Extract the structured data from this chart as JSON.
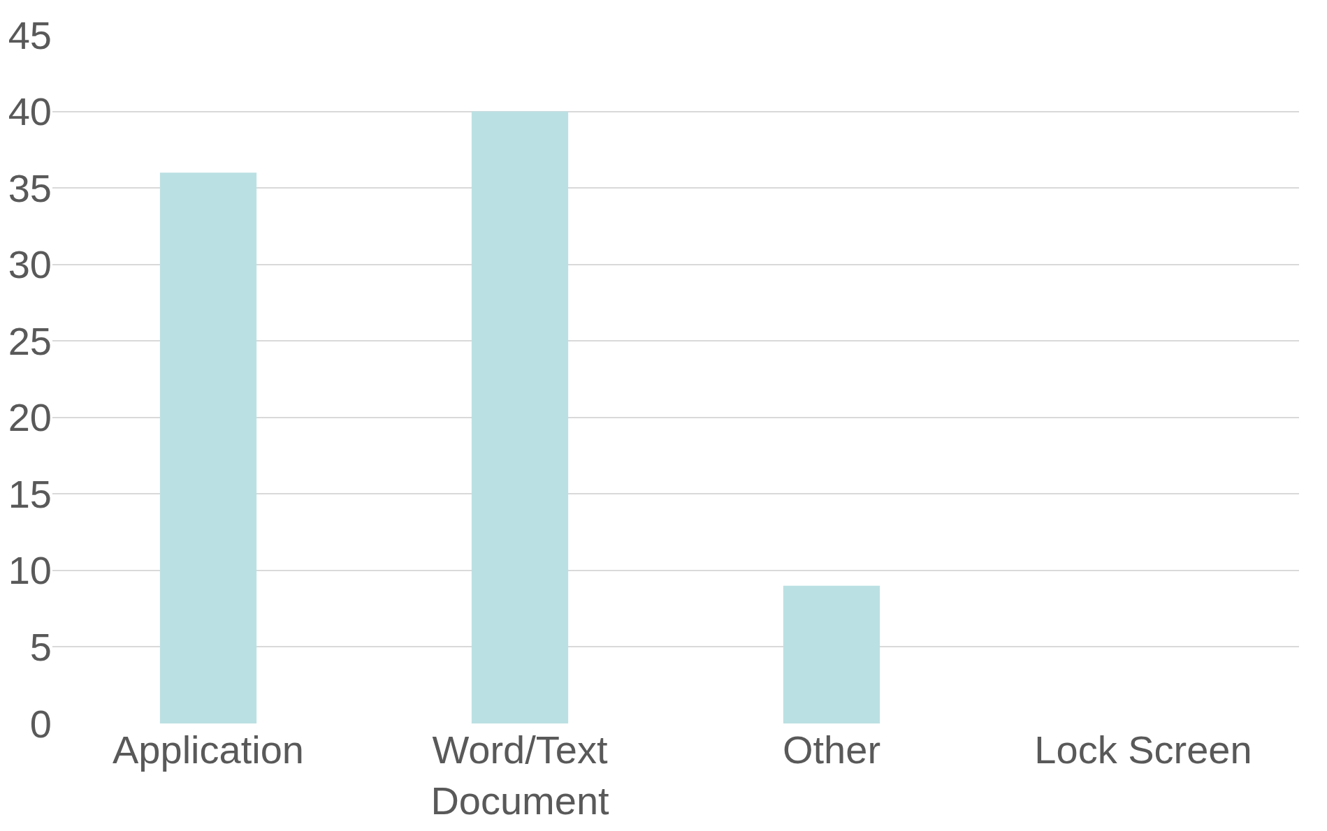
{
  "chart_data": {
    "type": "bar",
    "categories": [
      "Application",
      "Word/Text\nDocument",
      "Other",
      "Lock Screen"
    ],
    "values": [
      36,
      40,
      9,
      0
    ],
    "color": "#bbe0e3",
    "ylim": [
      0,
      45
    ],
    "yticks": [
      0,
      5,
      10,
      15,
      20,
      25,
      30,
      35,
      40,
      45
    ],
    "grid": "y"
  }
}
